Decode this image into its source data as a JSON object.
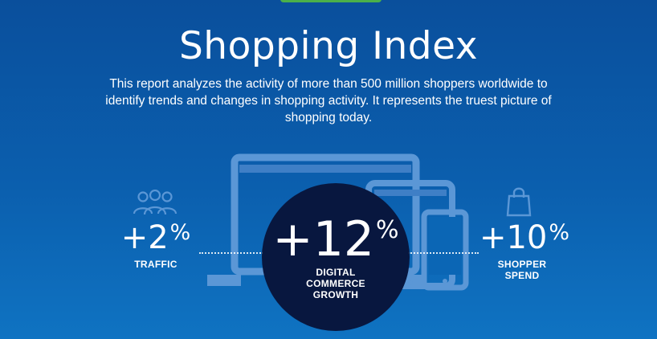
{
  "header": {
    "title": "Shopping Index",
    "intro": "This report analyzes the activity of more than 500 million shoppers worldwide to identify trends and changes in shopping activity. It represents the truest picture of shopping today."
  },
  "stats": {
    "traffic": {
      "value": "+2",
      "unit": "%",
      "label": "TRAFFIC",
      "icon": "people-icon"
    },
    "digital": {
      "value": "+12",
      "unit": "%",
      "label_line1": "DIGITAL",
      "label_line2": "COMMERCE",
      "label_line3": "GROWTH"
    },
    "spend": {
      "value": "+10",
      "unit": "%",
      "label_line1": "SHOPPER",
      "label_line2": "SPEND",
      "icon": "shopping-bag-icon"
    }
  },
  "colors": {
    "background_top": "#0a4f9c",
    "background_bottom": "#0f73c2",
    "circle": "#08173f",
    "device_outline": "#5b97d6",
    "tab": "#4bb04a"
  }
}
